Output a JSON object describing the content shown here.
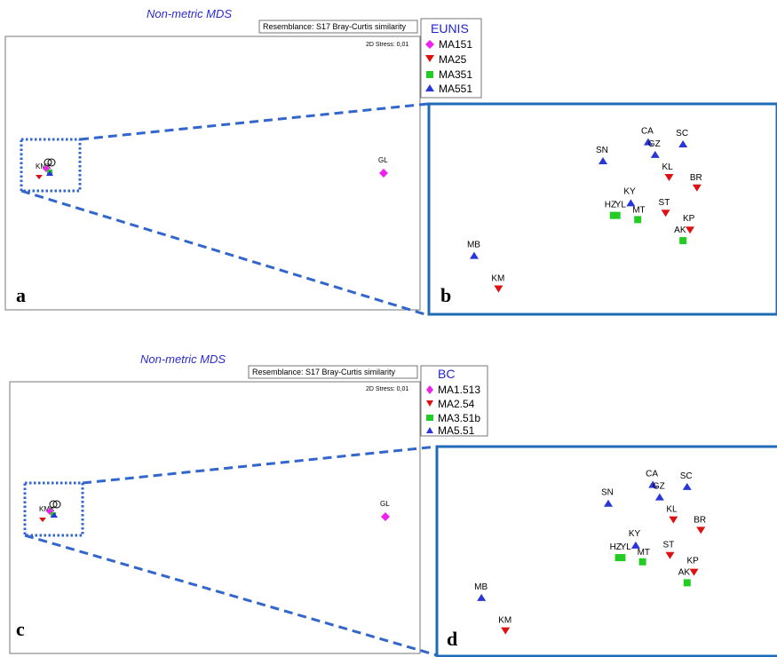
{
  "colors": {
    "MA151": "#ee22ee",
    "MA25": "#dd1111",
    "MA351": "#22cc22",
    "MA551": "#2a36d8",
    "zoom": "#3366cc",
    "title": "#2b2bd6"
  },
  "chart_data": [
    {
      "type": "scatter",
      "panel": "a",
      "title": "Non-metric MDS",
      "resemblance": "Resemblance: S17 Bray-Curtis similarity",
      "stress": "2D Stress: 0,01",
      "legend": {
        "title": "EUNIS",
        "entries": [
          {
            "name": "MA151",
            "marker": "diamond",
            "color": "#ee22ee"
          },
          {
            "name": "MA25",
            "marker": "triangle-down",
            "color": "#dd1111"
          },
          {
            "name": "MA351",
            "marker": "square",
            "color": "#22cc22"
          },
          {
            "name": "MA551",
            "marker": "triangle-up",
            "color": "#2a36d8"
          }
        ]
      },
      "points": [
        {
          "label": "GL",
          "group": "MA151",
          "x": 1.0,
          "y": 0.0
        },
        {
          "label": "KM",
          "group": "MA25",
          "x": 0.0,
          "y": 0.0
        }
      ]
    },
    {
      "type": "scatter",
      "panel": "b",
      "zoom_of": "a",
      "points": [
        {
          "label": "CA",
          "group": "MA551",
          "x": 0.63,
          "y": 0.82
        },
        {
          "label": "GZ",
          "group": "MA551",
          "x": 0.65,
          "y": 0.76
        },
        {
          "label": "SC",
          "group": "MA551",
          "x": 0.73,
          "y": 0.81
        },
        {
          "label": "SN",
          "group": "MA551",
          "x": 0.5,
          "y": 0.73
        },
        {
          "label": "KY",
          "group": "MA551",
          "x": 0.58,
          "y": 0.53
        },
        {
          "label": "MB",
          "group": "MA551",
          "x": 0.13,
          "y": 0.28
        },
        {
          "label": "KL",
          "group": "MA25",
          "x": 0.69,
          "y": 0.65
        },
        {
          "label": "BR",
          "group": "MA25",
          "x": 0.77,
          "y": 0.6
        },
        {
          "label": "ST",
          "group": "MA25",
          "x": 0.68,
          "y": 0.48
        },
        {
          "label": "KP",
          "group": "MA25",
          "x": 0.75,
          "y": 0.4
        },
        {
          "label": "KM",
          "group": "MA25",
          "x": 0.2,
          "y": 0.12
        },
        {
          "label": "HZ",
          "group": "MA351",
          "x": 0.53,
          "y": 0.47
        },
        {
          "label": "YL",
          "group": "MA351",
          "x": 0.54,
          "y": 0.47
        },
        {
          "label": "MT",
          "group": "MA351",
          "x": 0.6,
          "y": 0.45
        },
        {
          "label": "AK",
          "group": "MA351",
          "x": 0.73,
          "y": 0.35
        }
      ]
    },
    {
      "type": "scatter",
      "panel": "c",
      "title": "Non-metric MDS",
      "resemblance": "Resemblance: S17 Bray-Curtis similarity",
      "stress": "2D Stress: 0,01",
      "legend": {
        "title": "BC",
        "entries": [
          {
            "name": "MA1.513",
            "marker": "diamond",
            "color": "#ee22ee"
          },
          {
            "name": "MA2.54",
            "marker": "triangle-down",
            "color": "#dd1111"
          },
          {
            "name": "MA3.51b",
            "marker": "square",
            "color": "#22cc22"
          },
          {
            "name": "MA5.51",
            "marker": "triangle-up",
            "color": "#2a36d8"
          }
        ]
      },
      "points": [
        {
          "label": "GL",
          "group": "MA1.513",
          "x": 1.0,
          "y": 0.0
        },
        {
          "label": "KM",
          "group": "MA2.54",
          "x": 0.0,
          "y": 0.0
        }
      ]
    },
    {
      "type": "scatter",
      "panel": "d",
      "zoom_of": "c",
      "points": [
        {
          "label": "CA",
          "group": "MA5.51",
          "x": 0.63,
          "y": 0.82
        },
        {
          "label": "GZ",
          "group": "MA5.51",
          "x": 0.65,
          "y": 0.76
        },
        {
          "label": "SC",
          "group": "MA5.51",
          "x": 0.73,
          "y": 0.81
        },
        {
          "label": "SN",
          "group": "MA5.51",
          "x": 0.5,
          "y": 0.73
        },
        {
          "label": "KY",
          "group": "MA5.51",
          "x": 0.58,
          "y": 0.53
        },
        {
          "label": "MB",
          "group": "MA5.51",
          "x": 0.13,
          "y": 0.28
        },
        {
          "label": "KL",
          "group": "MA2.54",
          "x": 0.69,
          "y": 0.65
        },
        {
          "label": "BR",
          "group": "MA2.54",
          "x": 0.77,
          "y": 0.6
        },
        {
          "label": "ST",
          "group": "MA2.54",
          "x": 0.68,
          "y": 0.48
        },
        {
          "label": "KP",
          "group": "MA2.54",
          "x": 0.75,
          "y": 0.4
        },
        {
          "label": "KM",
          "group": "MA2.54",
          "x": 0.2,
          "y": 0.12
        },
        {
          "label": "HZ",
          "group": "MA3.51b",
          "x": 0.53,
          "y": 0.47
        },
        {
          "label": "YL",
          "group": "MA3.51b",
          "x": 0.54,
          "y": 0.47
        },
        {
          "label": "MT",
          "group": "MA3.51b",
          "x": 0.6,
          "y": 0.45
        },
        {
          "label": "AK",
          "group": "MA3.51b",
          "x": 0.73,
          "y": 0.35
        }
      ]
    }
  ]
}
